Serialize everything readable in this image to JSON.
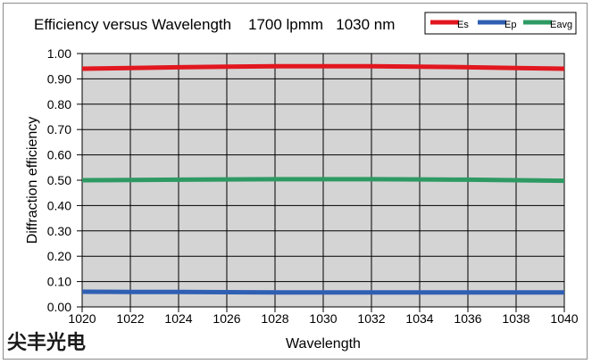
{
  "chart_data": {
    "type": "line",
    "title": "Efficiency versus Wavelength    1700 lpmm   1030 nm",
    "xlabel": "Wavelength",
    "ylabel": "Diffraction efficiency",
    "xlim": [
      1020,
      1040
    ],
    "ylim": [
      0.0,
      1.0
    ],
    "x_ticks": [
      "1020",
      "1022",
      "1024",
      "1026",
      "1028",
      "1030",
      "1032",
      "1034",
      "1036",
      "1038",
      "1040"
    ],
    "y_ticks": [
      "0.00",
      "0.10",
      "0.20",
      "0.30",
      "0.40",
      "0.50",
      "0.60",
      "0.70",
      "0.80",
      "0.90",
      "1.00"
    ],
    "grid": true,
    "legend_position": "top-right",
    "x": [
      1020,
      1022,
      1024,
      1026,
      1028,
      1030,
      1032,
      1034,
      1036,
      1038,
      1040
    ],
    "series": [
      {
        "name": "Es",
        "color": "#e2171f",
        "values": [
          0.94,
          0.943,
          0.946,
          0.948,
          0.95,
          0.95,
          0.95,
          0.948,
          0.946,
          0.943,
          0.94
        ]
      },
      {
        "name": "Ep",
        "color": "#2f5fb3",
        "values": [
          0.06,
          0.059,
          0.059,
          0.058,
          0.057,
          0.057,
          0.057,
          0.057,
          0.057,
          0.057,
          0.057
        ]
      },
      {
        "name": "Eavg",
        "color": "#2e9a63",
        "values": [
          0.5,
          0.501,
          0.502,
          0.503,
          0.504,
          0.504,
          0.504,
          0.503,
          0.502,
          0.5,
          0.498
        ]
      }
    ]
  },
  "watermark": {
    "text": "尖丰光电"
  },
  "colors": {
    "plot_background": "#d4d4d4",
    "grid_line": "#000000"
  }
}
